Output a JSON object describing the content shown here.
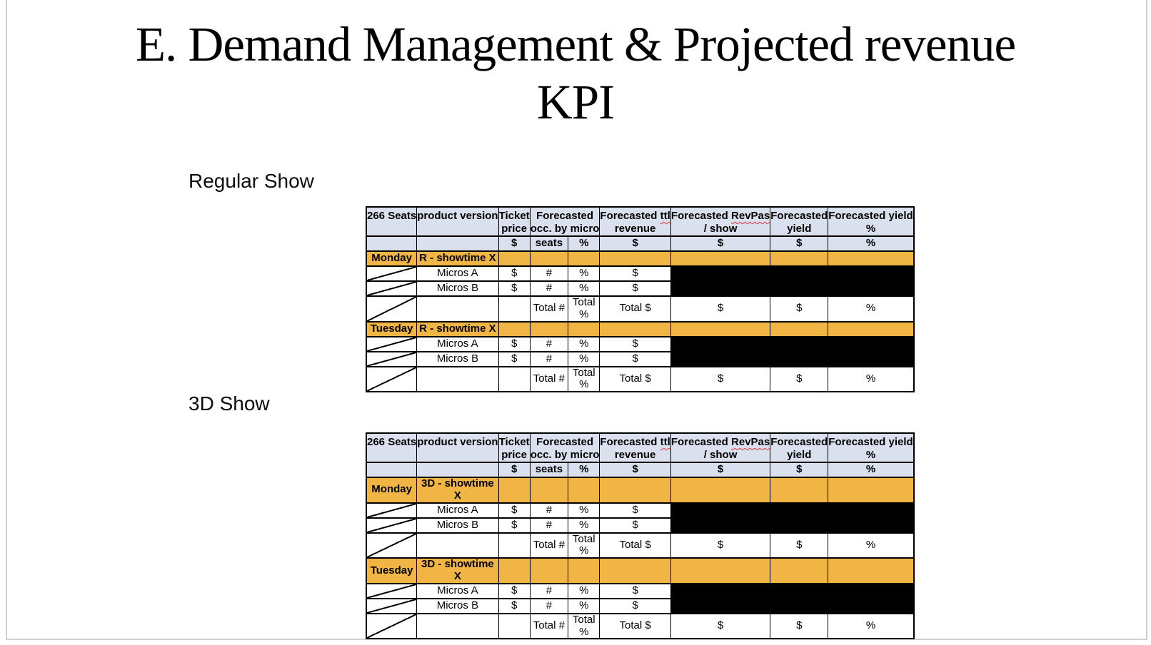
{
  "slide": {
    "title_line1": "E. Demand Management & Projected revenue",
    "title_line2": "KPI"
  },
  "spellcheck_words": [
    "ttl",
    "RevPas"
  ],
  "colors": {
    "header_fill": "#dae0ee",
    "day_row_fill": "#f0b545",
    "redacted_fill": "#000000",
    "table_border": "#000000",
    "spellcheck_underline": "#e0393e",
    "frame_border": "#cdd1d6"
  },
  "tables": [
    {
      "section_title": "Regular Show",
      "header_cols": [
        {
          "lines": [
            "266 Seats",
            ""
          ],
          "span": 1
        },
        {
          "lines": [
            "product version",
            ""
          ],
          "span": 1
        },
        {
          "lines": [
            "Ticket",
            "price"
          ],
          "span": 1
        },
        {
          "lines": [
            "Forecasted",
            "occ. by micro"
          ],
          "span": 2
        },
        {
          "lines": [
            "Forecasted ttl",
            "revenue"
          ],
          "span": 1
        },
        {
          "lines": [
            "Forecasted RevPas",
            "/ show"
          ],
          "span": 1
        },
        {
          "lines": [
            "Forecasted",
            "yield"
          ],
          "span": 1
        },
        {
          "lines": [
            "Forecasted yield",
            "%"
          ],
          "span": 1
        }
      ],
      "units": [
        "",
        "",
        "$",
        "seats",
        "%",
        "$",
        "$",
        "$",
        "%"
      ],
      "sections": [
        {
          "day": "Monday",
          "showtime": "R - showtime X",
          "micro_rows": [
            {
              "product": "Micros A",
              "ticket": "$",
              "seats": "#",
              "occ_pct": "%",
              "revenue": "$"
            },
            {
              "product": "Micros B",
              "ticket": "$",
              "seats": "#",
              "occ_pct": "%",
              "revenue": "$"
            }
          ],
          "total_row": {
            "seats": "Total #",
            "occ_pct": "Total %",
            "revenue": "Total $",
            "revpas": "$",
            "yield": "$",
            "yield_pct": "%"
          }
        },
        {
          "day": "Tuesday",
          "showtime": "R - showtime X",
          "micro_rows": [
            {
              "product": "Micros A",
              "ticket": "$",
              "seats": "#",
              "occ_pct": "%",
              "revenue": "$"
            },
            {
              "product": "Micros B",
              "ticket": "$",
              "seats": "#",
              "occ_pct": "%",
              "revenue": "$"
            }
          ],
          "total_row": {
            "seats": "Total #",
            "occ_pct": "Total %",
            "revenue": "Total $",
            "revpas": "$",
            "yield": "$",
            "yield_pct": "%"
          }
        }
      ]
    },
    {
      "section_title": "3D Show",
      "header_cols": [
        {
          "lines": [
            "266 Seats",
            ""
          ],
          "span": 1
        },
        {
          "lines": [
            "product version",
            ""
          ],
          "span": 1
        },
        {
          "lines": [
            "Ticket",
            "price"
          ],
          "span": 1
        },
        {
          "lines": [
            "Forecasted",
            "occ. by micro"
          ],
          "span": 2
        },
        {
          "lines": [
            "Forecasted ttl",
            "revenue"
          ],
          "span": 1
        },
        {
          "lines": [
            "Forecasted RevPas",
            "/ show"
          ],
          "span": 1
        },
        {
          "lines": [
            "Forecasted",
            "yield"
          ],
          "span": 1
        },
        {
          "lines": [
            "Forecasted yield",
            "%"
          ],
          "span": 1
        }
      ],
      "units": [
        "",
        "",
        "$",
        "seats",
        "%",
        "$",
        "$",
        "$",
        "%"
      ],
      "sections": [
        {
          "day": "Monday",
          "showtime": "3D - showtime X",
          "micro_rows": [
            {
              "product": "Micros A",
              "ticket": "$",
              "seats": "#",
              "occ_pct": "%",
              "revenue": "$"
            },
            {
              "product": "Micros B",
              "ticket": "$",
              "seats": "#",
              "occ_pct": "%",
              "revenue": "$"
            }
          ],
          "total_row": {
            "seats": "Total #",
            "occ_pct": "Total %",
            "revenue": "Total $",
            "revpas": "$",
            "yield": "$",
            "yield_pct": "%"
          }
        },
        {
          "day": "Tuesday",
          "showtime": "3D - showtime X",
          "micro_rows": [
            {
              "product": "Micros A",
              "ticket": "$",
              "seats": "#",
              "occ_pct": "%",
              "revenue": "$"
            },
            {
              "product": "Micros B",
              "ticket": "$",
              "seats": "#",
              "occ_pct": "%",
              "revenue": "$"
            }
          ],
          "total_row": {
            "seats": "Total #",
            "occ_pct": "Total %",
            "revenue": "Total $",
            "revpas": "$",
            "yield": "$",
            "yield_pct": "%"
          }
        }
      ]
    }
  ]
}
